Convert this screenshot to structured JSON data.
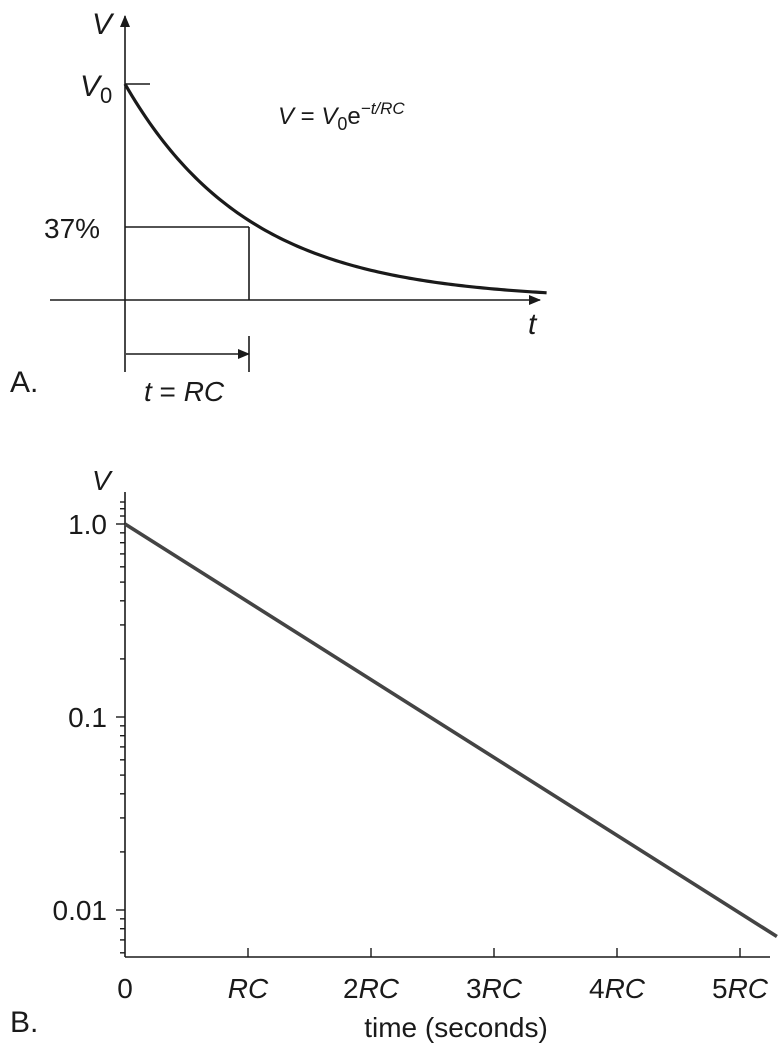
{
  "chart_data": [
    {
      "type": "line",
      "panel_label": "A.",
      "y_axis_label": "V",
      "x_axis_label": "t",
      "y_start_label": "V",
      "y_start_sub": "0",
      "level_label": "37%",
      "level_fraction": 0.37,
      "formula": {
        "lhs": "V",
        "eq": " = ",
        "v": "V",
        "v_sub": "0",
        "e": "e",
        "exponent": "−t/RC"
      },
      "marker": {
        "t": "t",
        "eq": " = ",
        "rc": "RC"
      },
      "series": [
        {
          "function": "exponential_decay",
          "time_constant": 1,
          "x_range_in_RC": [
            0,
            3.4
          ]
        }
      ]
    },
    {
      "type": "line",
      "panel_label": "B.",
      "y_axis_label": "V",
      "xlabel": "time (seconds)",
      "yscale": "log",
      "ylim": [
        0.006,
        1.4
      ],
      "xlim": [
        0,
        5.3
      ],
      "y_ticks": [
        {
          "value": 1.0,
          "label": "1.0"
        },
        {
          "value": 0.1,
          "label": "0.1"
        },
        {
          "value": 0.01,
          "label": "0.01"
        }
      ],
      "x_ticks": [
        {
          "value": 0,
          "pre": "0",
          "ital": ""
        },
        {
          "value": 1,
          "pre": "",
          "ital": "RC"
        },
        {
          "value": 2,
          "pre": "2",
          "ital": "RC"
        },
        {
          "value": 3,
          "pre": "3",
          "ital": "RC"
        },
        {
          "value": 4,
          "pre": "4",
          "ital": "RC"
        },
        {
          "value": 5,
          "pre": "5",
          "ital": "RC"
        }
      ],
      "series": [
        {
          "x": [
            0,
            5.3
          ],
          "y": [
            1.0,
            0.00729
          ]
        }
      ]
    }
  ]
}
